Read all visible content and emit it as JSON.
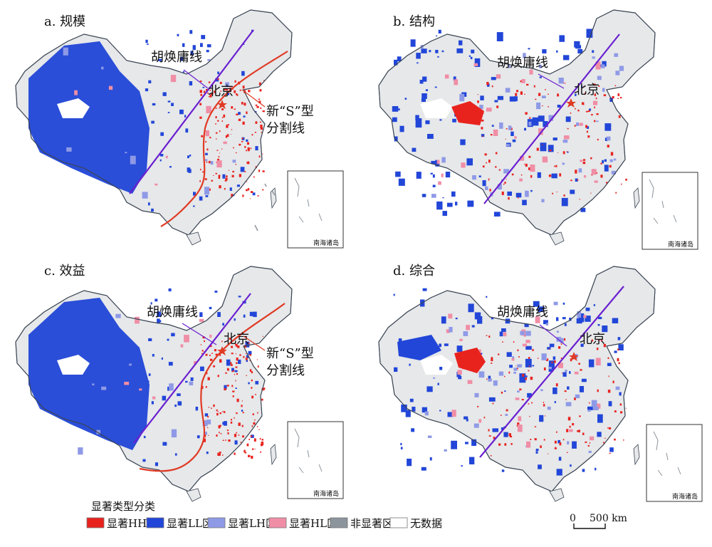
{
  "panels": [
    {
      "title": "a. 规模",
      "hu_label": "胡焕庸线",
      "beijing_label": "北京",
      "s_label_1": "新“S”型",
      "s_label_2": "分割线",
      "inset_label": "南海诸岛"
    },
    {
      "title": "b. 结构",
      "hu_label": "胡焕庸线",
      "beijing_label": "北京",
      "s_label_1": "",
      "s_label_2": "",
      "inset_label": "南海诸岛"
    },
    {
      "title": "c. 效益",
      "hu_label": "胡焕庸线",
      "beijing_label": "北京",
      "s_label_1": "新“S”型",
      "s_label_2": "分割线",
      "inset_label": "南海诸岛"
    },
    {
      "title": "d. 综合",
      "hu_label": "胡焕庸线",
      "beijing_label": "北京",
      "s_label_1": "",
      "s_label_2": "",
      "inset_label": "南海诸岛"
    }
  ],
  "legend": {
    "title": "显著类型分类",
    "items": [
      {
        "label": "显著HH区",
        "color": "#e8231e"
      },
      {
        "label": "显著LL区",
        "color": "#2246d8"
      },
      {
        "label": "显著LH区",
        "color": "#8f9ae6"
      },
      {
        "label": "显著HL区",
        "color": "#f08ea6"
      },
      {
        "label": "非显著区",
        "color": "#8c949c"
      },
      {
        "label": "无数据",
        "color": "#ffffff"
      }
    ]
  },
  "scale": {
    "zero": "0",
    "value": "500 km"
  },
  "colors": {
    "land": "#e6e8ea",
    "hu_line": "#6a1fd0",
    "s_line": "#e03a24",
    "border": "#3a4452"
  }
}
